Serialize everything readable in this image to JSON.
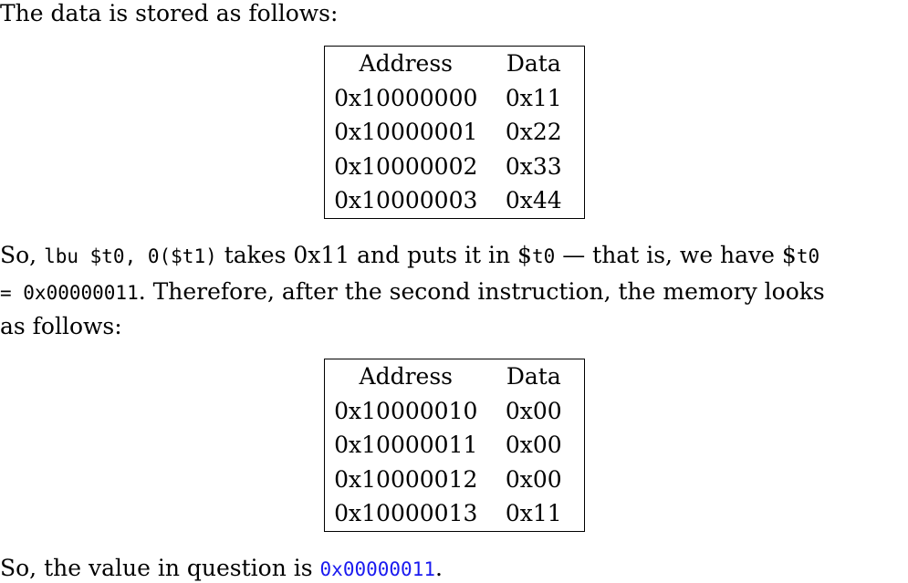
{
  "intro": "The data is stored as follows:",
  "table1": {
    "headers": [
      "Address",
      "Data"
    ],
    "rows": [
      [
        "0x10000000",
        "0x11"
      ],
      [
        "0x10000001",
        "0x22"
      ],
      [
        "0x10000002",
        "0x33"
      ],
      [
        "0x10000003",
        "0x44"
      ]
    ]
  },
  "para2": {
    "so": "So,",
    "instr": "lbu $t0, 0($t1)",
    "takes": "takes 0x11 and puts it in $",
    "reg1": "t0",
    "dash": "— that is, we have $",
    "reg2": "t0",
    "eq_val": "= 0x00000011",
    "therefore": ". Therefore, after the second instruction, the memory looks",
    "line3": "as follows:"
  },
  "table2": {
    "headers": [
      "Address",
      "Data"
    ],
    "rows": [
      [
        "0x10000010",
        "0x00"
      ],
      [
        "0x10000011",
        "0x00"
      ],
      [
        "0x10000012",
        "0x00"
      ],
      [
        "0x10000013",
        "0x11"
      ]
    ]
  },
  "conclusion": {
    "prefix": "So, the value in question is",
    "answer": "0x00000011",
    "suffix": "."
  }
}
